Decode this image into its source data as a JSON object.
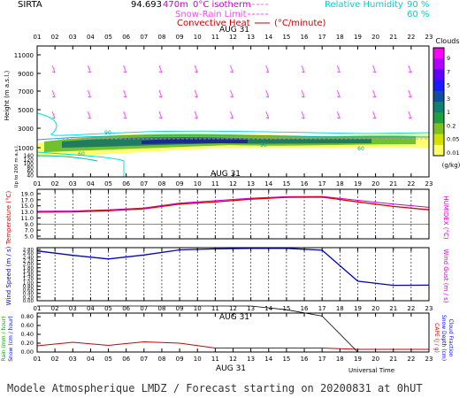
{
  "header": {
    "station": "SIRTA",
    "value": "94.693",
    "value_tail": "470m",
    "legend_iso": "0°C isotherm",
    "legend_snow": "Snow-Rain Limit",
    "legend_conv": "Convective Heat",
    "legend_conv_unit": "(°C/minute)",
    "legend_rh": "Relative Humidity",
    "rh_90": "90 %",
    "rh_60": "60 %"
  },
  "footer": {
    "text": "Modele Atmospherique LMDZ / Forecast starting on 20200831 at 0hUT"
  },
  "colors": {
    "temp": "#dd0000",
    "humidex": "#cc00cc",
    "wind": "#0000cc",
    "rain": "#00aa00",
    "snow": "#0000ff",
    "cape": "#cc0000",
    "rh": "#00e0e0",
    "conv": "#cc0000",
    "iso": "#ff66ff",
    "wind_arrow": "#ff44ff",
    "axes": "#000000"
  },
  "chart_data": [
    {
      "type": "heatmap",
      "name": "clouds",
      "xlabel_top": "AUG 31",
      "x_ticks": [
        "01",
        "02",
        "03",
        "04",
        "05",
        "06",
        "07",
        "08",
        "09",
        "10",
        "11",
        "12",
        "13",
        "14",
        "15",
        "16",
        "17",
        "18",
        "19",
        "20",
        "21",
        "22",
        "23"
      ],
      "ylabel": "Height (m a.s.l.)",
      "ylabel_lower": "Up to 200 m a.s.l.",
      "y_ticks_upper": [
        "11000",
        "9000",
        "7000",
        "5000",
        "3000",
        "1000"
      ],
      "y_ticks_lower": [
        "140",
        "120",
        "100",
        "80",
        "60",
        "40",
        "20"
      ],
      "rh_contour_labels": [
        "90",
        "60",
        "90",
        "60"
      ],
      "colorbar": {
        "title": "Clouds",
        "unit": "(g/kg)",
        "ticks": [
          "9",
          "7",
          "5",
          "3",
          "1",
          "0.2",
          "0.05",
          "0.01"
        ],
        "colors": [
          "#ff00ff",
          "#b000ff",
          "#6000ff",
          "#1a1aff",
          "#1050a0",
          "#108070",
          "#20a040",
          "#80c020",
          "#d0e000",
          "#ffff60"
        ]
      }
    },
    {
      "type": "line",
      "name": "temperature",
      "xlabel_top": "AUG 31",
      "x_ticks": [
        "01",
        "02",
        "03",
        "04",
        "05",
        "06",
        "07",
        "08",
        "09",
        "10",
        "11",
        "12",
        "13",
        "14",
        "15",
        "16",
        "17",
        "18",
        "19",
        "20",
        "21",
        "22",
        "23"
      ],
      "ylabel_left": "Temperature (°C)",
      "ylabel_right": "HUMIDEX (°C)",
      "y_ticks": [
        "19.0",
        "17.0",
        "15.0",
        "13.0",
        "11.0",
        "9.0",
        "7.0",
        "5.0"
      ],
      "ylim": [
        5,
        19
      ],
      "zero_line": 9,
      "series": [
        {
          "name": "Temperature",
          "x": [
            1,
            3,
            5,
            7,
            9,
            11,
            13,
            15,
            17,
            19,
            21,
            23
          ],
          "values": [
            12.9,
            13.0,
            13.4,
            14.0,
            15.6,
            16.3,
            17.2,
            17.8,
            17.9,
            16.3,
            14.8,
            13.7
          ]
        },
        {
          "name": "HUMIDEX",
          "x": [
            1,
            3,
            5,
            7,
            9,
            11,
            13,
            15,
            17,
            19,
            21,
            23
          ],
          "values": [
            13.2,
            13.3,
            13.7,
            14.3,
            15.9,
            16.7,
            17.5,
            18.0,
            18.1,
            16.8,
            15.6,
            14.5
          ]
        }
      ]
    },
    {
      "type": "line",
      "name": "wind",
      "xlabel_top": "AUG 31",
      "x_ticks": [
        "01",
        "02",
        "03",
        "04",
        "05",
        "06",
        "07",
        "08",
        "09",
        "10",
        "11",
        "12",
        "13",
        "14",
        "15",
        "16",
        "17",
        "18",
        "19",
        "20",
        "21",
        "22",
        "23"
      ],
      "ylabel_left": "Wind Speed (m / s)",
      "ylabel_right": "Wind Gust (m / s)",
      "y_ticks": [
        "2.80",
        "2.60",
        "2.40",
        "2.20",
        "2.00",
        "1.80",
        "1.60",
        "1.40",
        "1.20",
        "1.00",
        "0.80",
        "0.60",
        "0.40",
        "0.20",
        "0.00"
      ],
      "ylim": [
        0,
        2.9
      ],
      "series": [
        {
          "name": "Wind Speed",
          "x": [
            1,
            3,
            5,
            7,
            9,
            11,
            13,
            15,
            17,
            19,
            21,
            23
          ],
          "values": [
            2.72,
            2.48,
            2.28,
            2.5,
            2.78,
            2.83,
            2.86,
            2.86,
            2.76,
            1.07,
            0.84,
            0.85
          ]
        }
      ]
    },
    {
      "type": "line",
      "name": "precip",
      "xlabel_top": "AUG 31",
      "xlabel": "Universal Time",
      "x_ticks": [
        "01",
        "02",
        "03",
        "04",
        "05",
        "06",
        "07",
        "08",
        "09",
        "10",
        "11",
        "12",
        "13",
        "14",
        "15",
        "16",
        "17",
        "18",
        "19",
        "20",
        "21",
        "22",
        "23"
      ],
      "ylabel_left": [
        "Rain (mm / hour)",
        "Snow (cm / hour)"
      ],
      "ylabel_right": [
        "CAPE (J / g)",
        "Snow Depth (cm)",
        "Cloud Fraction"
      ],
      "y_ticks": [
        "0.80",
        "0.60",
        "0.40",
        "0.20",
        "0.00"
      ],
      "series": [
        {
          "name": "CAPE",
          "x": [
            1,
            3,
            5,
            7,
            9,
            11,
            13,
            15,
            17,
            19,
            21,
            23
          ],
          "values": [
            0.14,
            0.22,
            0.15,
            0.23,
            0.2,
            0.09,
            0.09,
            0.09,
            0.09,
            0.06,
            0.06,
            0.06
          ]
        },
        {
          "name": "Cloud Fraction",
          "x": [
            1,
            3,
            5,
            7,
            9,
            11,
            13,
            15,
            17,
            19,
            21,
            23
          ],
          "values": [
            1.0,
            1.0,
            1.0,
            1.0,
            1.0,
            1.0,
            1.0,
            0.92,
            0.78,
            0.0,
            0.0,
            0.0
          ]
        },
        {
          "name": "Rain",
          "x": [
            1,
            23
          ],
          "values": [
            0,
            0
          ]
        }
      ]
    }
  ]
}
